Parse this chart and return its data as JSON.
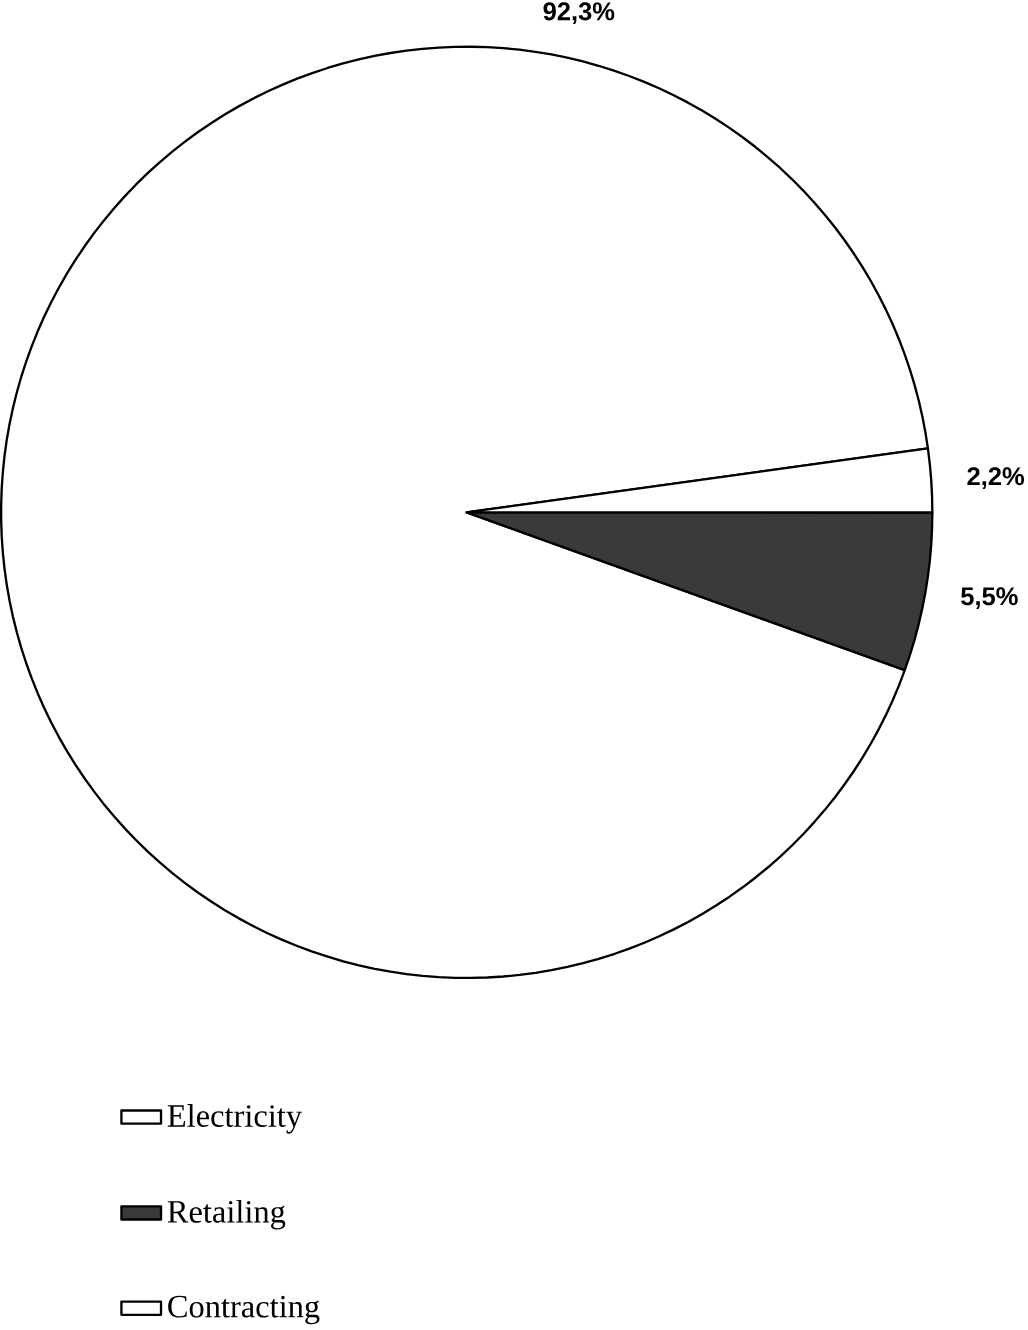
{
  "chart_data": {
    "type": "pie",
    "categories": [
      "Electricity",
      "Retailing",
      "Contracting"
    ],
    "values": [
      92.3,
      5.5,
      2.2
    ],
    "colors": [
      "#ffffff",
      "#3a3a3a",
      "#ffffff"
    ],
    "value_labels": [
      "92,3%",
      "5,5%",
      "2,2%"
    ],
    "legend": "bottom left"
  }
}
